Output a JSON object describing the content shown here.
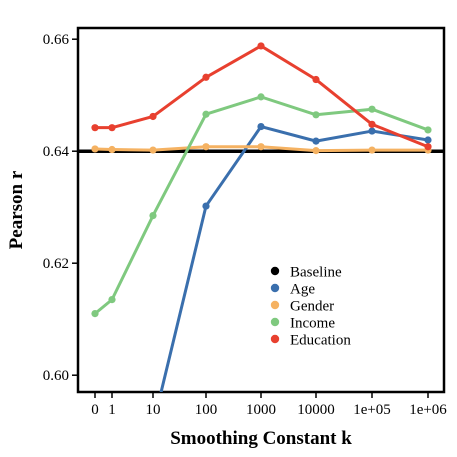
{
  "chart_data": {
    "type": "line",
    "title": "",
    "xlabel": "Smoothing Constant k",
    "ylabel": "Pearson r",
    "x_tick_labels": [
      "0",
      "1",
      "10",
      "100",
      "1000",
      "10000",
      "1e+05",
      "1e+06"
    ],
    "y_tick_labels": [
      "0.60",
      "0.62",
      "0.64",
      "0.66"
    ],
    "y_ticks": [
      0.6,
      0.62,
      0.64,
      0.66
    ],
    "ylim": [
      0.597,
      0.662
    ],
    "grid": false,
    "legend_position": "center-right",
    "baseline": {
      "name": "Baseline",
      "value": 0.64,
      "color": "#000000"
    },
    "series": [
      {
        "name": "Age",
        "color": "#3a6fad",
        "values": [
          null,
          null,
          null,
          0.6302,
          0.6444,
          0.6418,
          0.6436,
          0.642
        ]
      },
      {
        "name": "Gender",
        "color": "#f5b262",
        "values": [
          0.6404,
          0.6403,
          0.6402,
          0.6408,
          0.6408,
          0.6401,
          0.6402,
          0.6402
        ]
      },
      {
        "name": "Income",
        "color": "#7fc97f",
        "values": [
          0.611,
          0.6135,
          0.6285,
          0.6466,
          0.6497,
          0.6465,
          0.6475,
          0.6438
        ]
      },
      {
        "name": "Education",
        "color": "#e8402f",
        "values": [
          0.6442,
          0.6442,
          0.6462,
          0.6532,
          0.6588,
          0.6528,
          0.6448,
          0.6408
        ]
      }
    ],
    "age_offscale_start": {
      "x_index": 2,
      "y": 0.591
    }
  }
}
